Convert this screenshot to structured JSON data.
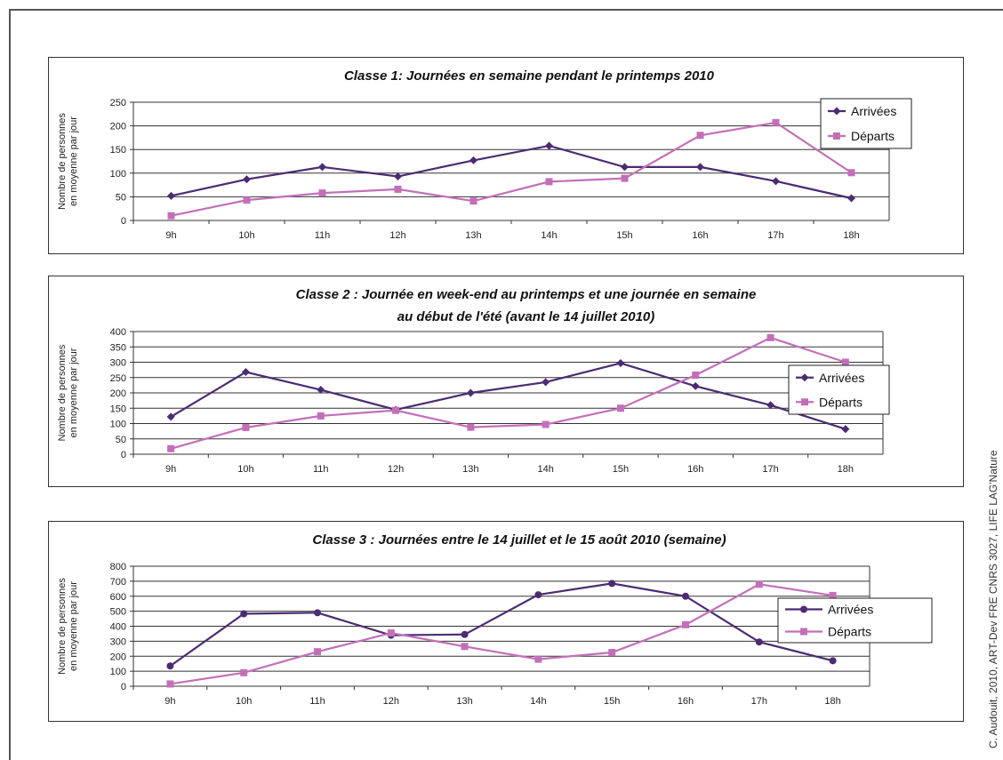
{
  "credit": "C. Audouit, 2010, ART-Dev FRE CNRS 3027, LIFE LAG'Nature",
  "colors": {
    "arrivees": "#4b2c73",
    "departs": "#c36fb8",
    "grid": "#333333",
    "axis_text": "#222222"
  },
  "chart_data": [
    {
      "type": "line",
      "title": [
        "Classe 1:  Journées en semaine pendant le printemps 2010"
      ],
      "ylabel": [
        "Nombre de personnes",
        "en moyenne par jour"
      ],
      "categories": [
        "9h",
        "10h",
        "11h",
        "12h",
        "13h",
        "14h",
        "15h",
        "16h",
        "17h",
        "18h"
      ],
      "ylim": [
        0,
        250
      ],
      "yticks": [
        0,
        50,
        100,
        150,
        200,
        250
      ],
      "grid": true,
      "legend": "top-right",
      "series": [
        {
          "name": "Arrivées",
          "marker": "diamond",
          "values": [
            52,
            87,
            113,
            93,
            127,
            158,
            113,
            113,
            83,
            47
          ]
        },
        {
          "name": "Départs",
          "marker": "square",
          "values": [
            10,
            43,
            58,
            66,
            41,
            82,
            89,
            180,
            207,
            101
          ]
        }
      ]
    },
    {
      "type": "line",
      "title": [
        "Classe 2 : Journée en week-end au printemps et une journée en semaine",
        "au début de l'été (avant le 14 juillet 2010)"
      ],
      "ylabel": [
        "Nombre de personnes",
        "en moyenne par jour"
      ],
      "categories": [
        "9h",
        "10h",
        "11h",
        "12h",
        "13h",
        "14h",
        "15h",
        "16h",
        "17h",
        "18h"
      ],
      "ylim": [
        0,
        400
      ],
      "yticks": [
        0,
        50,
        100,
        150,
        200,
        250,
        300,
        350,
        400
      ],
      "grid": true,
      "legend": "right",
      "series": [
        {
          "name": "Arrivées",
          "marker": "diamond",
          "values": [
            122,
            268,
            210,
            145,
            200,
            235,
            297,
            222,
            160,
            82
          ]
        },
        {
          "name": "Départs",
          "marker": "square",
          "values": [
            18,
            87,
            125,
            143,
            88,
            97,
            150,
            258,
            380,
            300
          ]
        }
      ]
    },
    {
      "type": "line",
      "title": [
        "Classe 3 : Journées entre le 14 juillet et le 15 août 2010 (semaine)"
      ],
      "ylabel": [
        "Nombre de personnes",
        "en moyenne par jour"
      ],
      "categories": [
        "9h",
        "10h",
        "11h",
        "12h",
        "13h",
        "14h",
        "15h",
        "16h",
        "17h",
        "18h"
      ],
      "ylim": [
        0,
        800
      ],
      "yticks": [
        0,
        100,
        200,
        300,
        400,
        500,
        600,
        700,
        800
      ],
      "grid": true,
      "legend": "right",
      "series": [
        {
          "name": "Arrivées",
          "marker": "circle",
          "values": [
            135,
            483,
            490,
            340,
            345,
            610,
            685,
            600,
            295,
            170
          ]
        },
        {
          "name": "Départs",
          "marker": "square",
          "values": [
            15,
            90,
            230,
            355,
            265,
            180,
            225,
            410,
            680,
            605
          ]
        }
      ]
    }
  ]
}
